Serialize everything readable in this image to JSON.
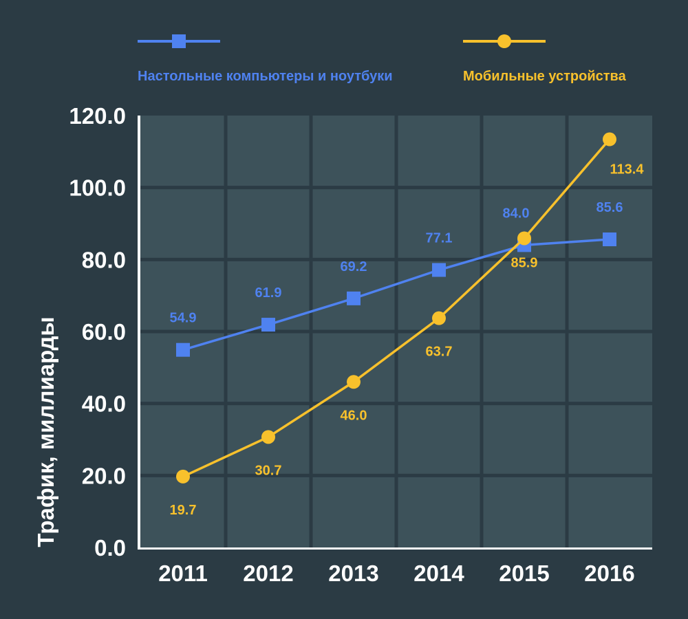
{
  "chart_data": {
    "type": "line",
    "title": "",
    "xlabel": "",
    "ylabel": "Трафик, миллиарды",
    "categories": [
      "2011",
      "2012",
      "2013",
      "2014",
      "2015",
      "2016"
    ],
    "ylim": [
      0,
      120
    ],
    "yticks": [
      "0.0",
      "20.0",
      "40.0",
      "60.0",
      "80.0",
      "100.0",
      "120.0"
    ],
    "grid": true,
    "legend_position": "top",
    "series": [
      {
        "name": "Настольные компьютеры и ноутбуки",
        "color": "#4f82f0",
        "marker": "square",
        "values": [
          54.9,
          61.9,
          69.2,
          77.1,
          84.0,
          85.6
        ],
        "labels": [
          "54.9",
          "61.9",
          "69.2",
          "77.1",
          "84.0",
          "85.6"
        ]
      },
      {
        "name": "Мобильные устройства",
        "color": "#f8c12c",
        "marker": "circle",
        "values": [
          19.7,
          30.7,
          46.0,
          63.7,
          85.9,
          113.4
        ],
        "labels": [
          "19.7",
          "30.7",
          "46.0",
          "63.7",
          "85.9",
          "113.4"
        ]
      }
    ]
  }
}
